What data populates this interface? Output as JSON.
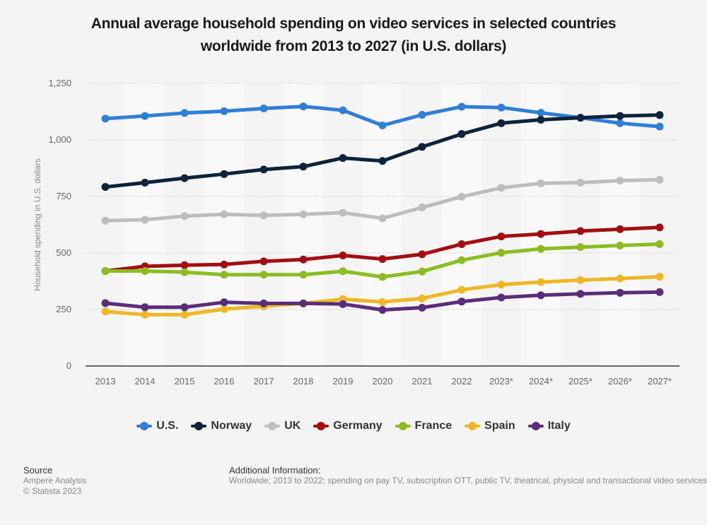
{
  "chart_data": {
    "type": "line",
    "title": "Annual average household spending on video services in selected countries worldwide from 2013 to 2027 (in U.S. dollars)",
    "title_lines": [
      "Annual average household spending on video services in selected countries",
      "worldwide from 2013 to 2027 (in U.S. dollars)"
    ],
    "xlabel": "",
    "ylabel": "Household spending in U.S. dollars",
    "categories": [
      "2013",
      "2014",
      "2015",
      "2016",
      "2017",
      "2018",
      "2019",
      "2020",
      "2021",
      "2022",
      "2023*",
      "2024*",
      "2025*",
      "2026*",
      "2027*"
    ],
    "ylim": [
      0,
      1250
    ],
    "yticks": [
      0,
      250,
      500,
      750,
      1000,
      1250
    ],
    "ytick_labels": [
      "0",
      "250",
      "500",
      "750",
      "1,000",
      "1,250"
    ],
    "grid": true,
    "legend_position": "bottom",
    "series": [
      {
        "name": "U.S.",
        "color": "#2f7ed8",
        "values": [
          1094,
          1106,
          1119,
          1127,
          1139,
          1148,
          1131,
          1064,
          1111,
          1147,
          1143,
          1120,
          1098,
          1074,
          1059
        ]
      },
      {
        "name": "Norway",
        "color": "#0d233a",
        "values": [
          792,
          811,
          831,
          849,
          869,
          882,
          920,
          907,
          969,
          1026,
          1074,
          1089,
          1098,
          1106,
          1110
        ]
      },
      {
        "name": "UK",
        "color": "#bdbdbd",
        "values": [
          643,
          647,
          663,
          671,
          666,
          671,
          678,
          653,
          701,
          749,
          788,
          808,
          811,
          820,
          824
        ]
      },
      {
        "name": "Germany",
        "color": "#a30e11",
        "values": [
          420,
          441,
          446,
          449,
          463,
          471,
          489,
          473,
          494,
          539,
          573,
          584,
          597,
          605,
          613
        ]
      },
      {
        "name": "France",
        "color": "#8bbc21",
        "values": [
          420,
          420,
          415,
          404,
          404,
          404,
          419,
          394,
          418,
          468,
          501,
          518,
          526,
          533,
          539
        ]
      },
      {
        "name": "Spain",
        "color": "#efb724",
        "values": [
          241,
          227,
          227,
          252,
          264,
          277,
          296,
          283,
          299,
          337,
          360,
          371,
          380,
          387,
          395
        ]
      },
      {
        "name": "Italy",
        "color": "#5b2c7a",
        "values": [
          278,
          260,
          260,
          282,
          277,
          277,
          274,
          248,
          258,
          285,
          303,
          313,
          319,
          324,
          327
        ]
      }
    ]
  },
  "footer": {
    "source_heading": "Source",
    "source_name": "Ampere Analysis",
    "copyright": "© Statista 2023",
    "info_heading": "Additional Information:",
    "info_text": "Worldwide; 2013 to 2022; spending on pay TV, subscription OTT, public TV, theatrical, physical and transactional video services"
  }
}
